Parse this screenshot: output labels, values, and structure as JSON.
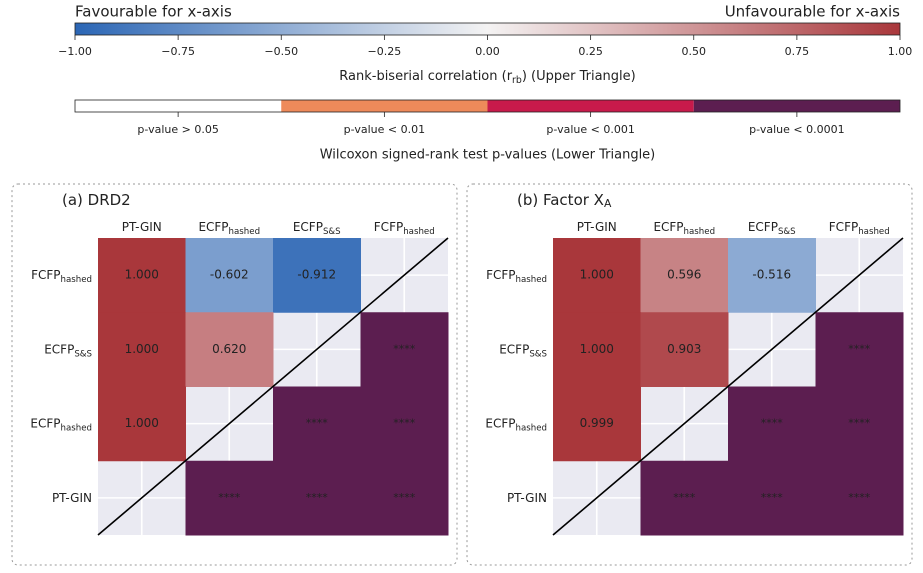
{
  "chart_data": [
    {
      "type": "colorbar",
      "left_label": "Favourable for x-axis",
      "right_label": "Unfavourable for x-axis",
      "label": {
        "text": "Rank-biserial correlation (r",
        "sub": "rb",
        "after": ") (Upper Triangle)"
      },
      "xlim": [
        -1,
        1
      ],
      "xticks": [
        {
          "value": -1,
          "label": "−1.00"
        },
        {
          "value": -0.75,
          "label": "−0.75"
        },
        {
          "value": -0.5,
          "label": "−0.50"
        },
        {
          "value": -0.25,
          "label": "−0.25"
        },
        {
          "value": 0,
          "label": "0.00"
        },
        0.25,
        {
          "value": 0.5,
          "label": "0.50"
        },
        0.75,
        {
          "value": 1,
          "label": "1.00"
        }
      ],
      "colormap": [
        "#2b66b5",
        "#f4f3f3",
        "#a9373b"
      ]
    },
    {
      "type": "categorical-colorbar",
      "categories": [
        "p-value > 0.05",
        "p-value < 0.01",
        "p-value < 0.001",
        "p-value < 0.0001"
      ],
      "colors": [
        "#ffffff",
        "#ee8a5a",
        "#c81a4b",
        "#5c1e50"
      ],
      "label": "Wilcoxon signed-rank test p-values (Lower Triangle)"
    },
    {
      "type": "heatmap",
      "title": {
        "text": "(a) DRD2"
      },
      "x": [
        {
          "text": "PT-GIN"
        },
        {
          "text": "ECFP",
          "sub": "hashed"
        },
        {
          "text": "ECFP",
          "sub": "S&S"
        },
        {
          "text": "FCFP",
          "sub": "hashed"
        }
      ],
      "y": [
        {
          "text": "FCFP",
          "sub": "hashed"
        },
        {
          "text": "ECFP",
          "sub": "S&S"
        },
        {
          "text": "ECFP",
          "sub": "hashed"
        },
        {
          "text": "PT-GIN"
        }
      ],
      "values": [
        [
          1,
          -0.602,
          -0.912,
          null
        ],
        [
          1,
          0.62,
          null,
          null
        ],
        [
          1,
          null,
          null,
          null
        ],
        [
          null,
          null,
          null,
          null
        ]
      ],
      "value_labels": [
        [
          "1.000",
          "-0.602",
          "-0.912",
          null
        ],
        [
          "1.000",
          "0.620",
          null,
          null
        ],
        [
          "1.000",
          null,
          null,
          null
        ],
        [
          null,
          null,
          null,
          null
        ]
      ],
      "significance": [
        [
          null,
          null,
          null,
          null
        ],
        [
          null,
          null,
          null,
          3
        ],
        [
          null,
          null,
          3,
          3
        ],
        [
          null,
          3,
          3,
          3
        ]
      ],
      "significance_labels": [
        [
          null,
          null,
          null,
          null
        ],
        [
          null,
          null,
          null,
          "****"
        ],
        [
          null,
          null,
          "****",
          "****"
        ],
        [
          null,
          "****",
          "****",
          "****"
        ]
      ]
    },
    {
      "type": "heatmap",
      "title": {
        "text": "(b) Factor X",
        "sub": "A"
      },
      "x": [
        {
          "text": "PT-GIN"
        },
        {
          "text": "ECFP",
          "sub": "hashed"
        },
        {
          "text": "ECFP",
          "sub": "S&S"
        },
        {
          "text": "FCFP",
          "sub": "hashed"
        }
      ],
      "y": [
        {
          "text": "FCFP",
          "sub": "hashed"
        },
        {
          "text": "ECFP",
          "sub": "S&S"
        },
        {
          "text": "ECFP",
          "sub": "hashed"
        },
        {
          "text": "PT-GIN"
        }
      ],
      "values": [
        [
          1,
          0.596,
          -0.516,
          null
        ],
        [
          1,
          0.903,
          null,
          null
        ],
        [
          0.999,
          null,
          null,
          null
        ],
        [
          null,
          null,
          null,
          null
        ]
      ],
      "value_labels": [
        [
          "1.000",
          "0.596",
          "-0.516",
          null
        ],
        [
          "1.000",
          "0.903",
          null,
          null
        ],
        [
          "0.999",
          null,
          null,
          null
        ],
        [
          null,
          null,
          null,
          null
        ]
      ],
      "significance": [
        [
          null,
          null,
          null,
          null
        ],
        [
          null,
          null,
          null,
          3
        ],
        [
          null,
          null,
          3,
          3
        ],
        [
          null,
          3,
          3,
          3
        ]
      ],
      "significance_labels": [
        [
          null,
          null,
          null,
          null
        ],
        [
          null,
          null,
          null,
          "****"
        ],
        [
          null,
          null,
          "****",
          "****"
        ],
        [
          null,
          "****",
          "****",
          "****"
        ]
      ]
    }
  ]
}
